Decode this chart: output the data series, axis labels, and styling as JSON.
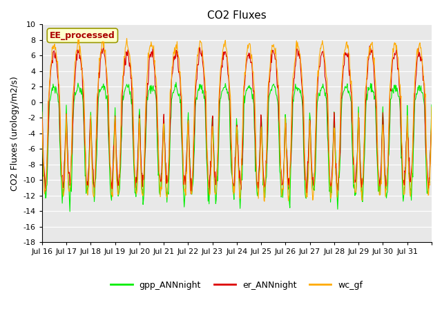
{
  "title": "CO2 Fluxes",
  "ylabel": "CO2 Fluxes (urology/m2/s)",
  "ylim": [
    -18,
    10
  ],
  "yticks": [
    -18,
    -16,
    -14,
    -12,
    -10,
    -8,
    -6,
    -4,
    -2,
    0,
    2,
    4,
    6,
    8,
    10
  ],
  "xtick_positions": [
    0,
    1,
    2,
    3,
    4,
    5,
    6,
    7,
    8,
    9,
    10,
    11,
    12,
    13,
    14,
    15,
    16
  ],
  "xtick_labels": [
    "Jul 16",
    "Jul 17",
    "Jul 18",
    "Jul 19",
    "Jul 20",
    "Jul 21",
    "Jul 22",
    "Jul 23",
    "Jul 24",
    "Jul 25",
    "Jul 26",
    "Jul 27",
    "Jul 28",
    "Jul 29",
    "Jul 30",
    "Jul 31",
    ""
  ],
  "legend_labels": [
    "gpp_ANNnight",
    "er_ANNnight",
    "wc_gf"
  ],
  "legend_colors": [
    "#00ee00",
    "#dd0000",
    "#ffaa00"
  ],
  "annotation_text": "EE_processed",
  "annotation_color": "#aa0000",
  "annotation_bg": "#ffffcc",
  "annotation_edge": "#999900",
  "plot_bg": "#e8e8e8",
  "gpp_color": "#00ee00",
  "er_color": "#dd0000",
  "wc_color": "#ffaa00",
  "n_days": 16,
  "pts_per_day": 48,
  "seed": 42
}
